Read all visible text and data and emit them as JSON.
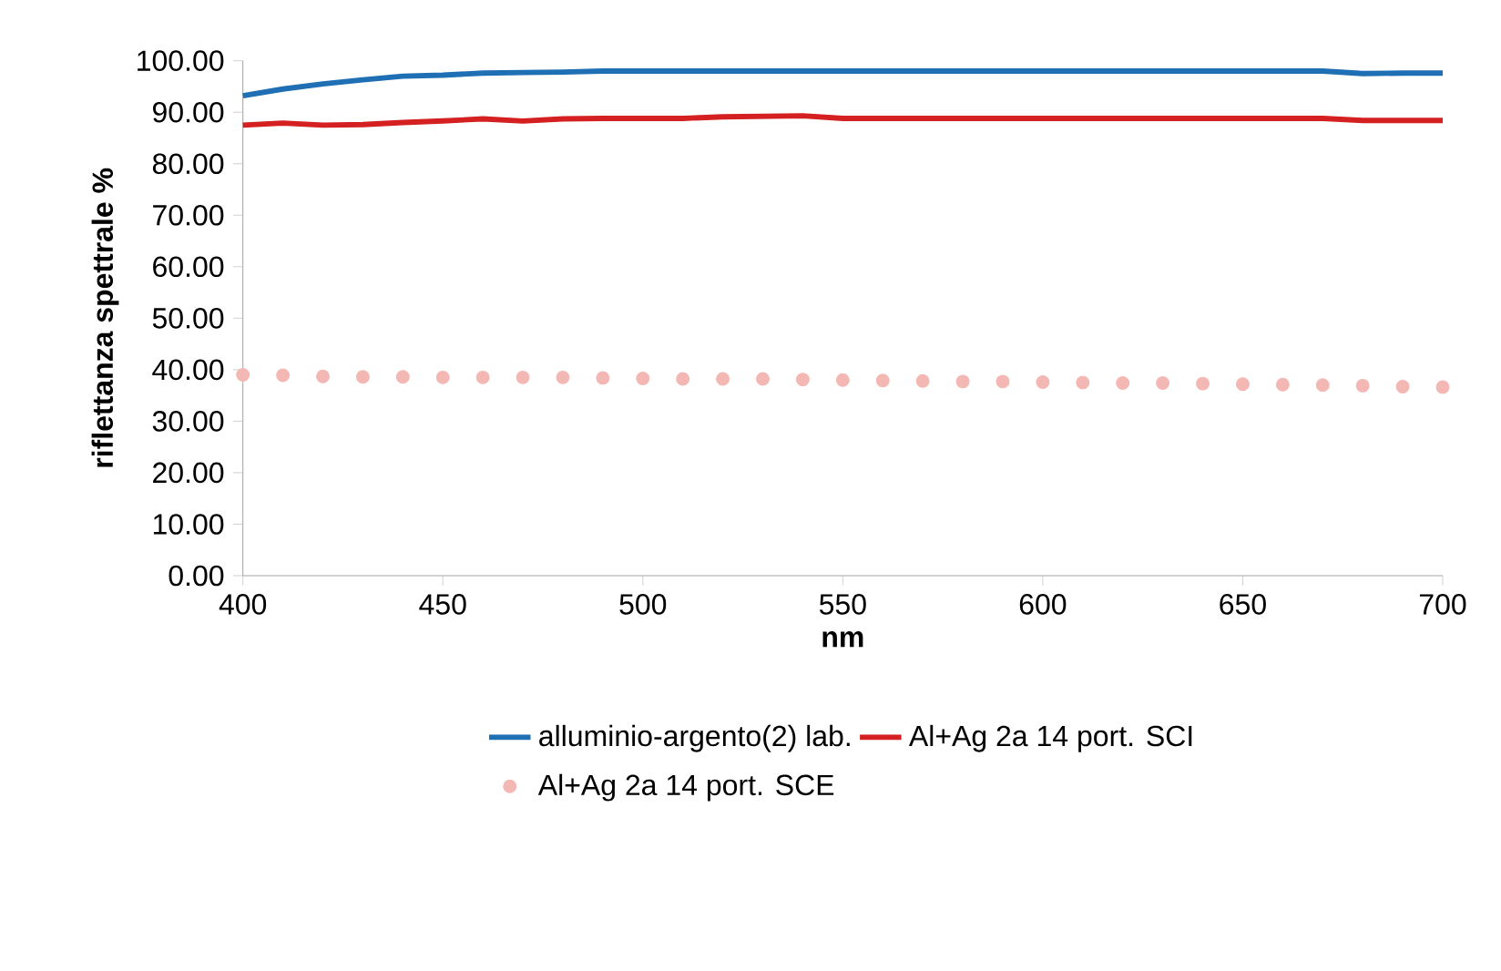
{
  "chart_data": {
    "type": "line",
    "xlabel": "nm",
    "ylabel": "riflettanza spettrale %",
    "x": [
      400,
      410,
      420,
      430,
      440,
      450,
      460,
      470,
      480,
      490,
      500,
      510,
      520,
      530,
      540,
      550,
      560,
      570,
      580,
      590,
      600,
      610,
      620,
      630,
      640,
      650,
      660,
      670,
      680,
      690,
      700
    ],
    "series": [
      {
        "name": "alluminio-argento(2)  lab.",
        "color": "#1f6fb4",
        "values": [
          93.2,
          94.5,
          95.5,
          96.3,
          97.0,
          97.2,
          97.6,
          97.7,
          97.8,
          98.0,
          98.0,
          98.0,
          98.0,
          98.0,
          98.0,
          98.0,
          98.0,
          98.0,
          98.0,
          98.0,
          98.0,
          98.0,
          98.0,
          98.0,
          98.0,
          98.0,
          98.0,
          98.0,
          97.5,
          97.6,
          97.6
        ]
      },
      {
        "name": "Al+Ag 2a 14 port. SCI",
        "color": "#d42020",
        "values": [
          87.5,
          87.9,
          87.5,
          87.6,
          88.0,
          88.3,
          88.7,
          88.3,
          88.7,
          88.8,
          88.8,
          88.8,
          89.1,
          89.2,
          89.3,
          88.8,
          88.8,
          88.8,
          88.8,
          88.8,
          88.8,
          88.8,
          88.8,
          88.8,
          88.8,
          88.8,
          88.8,
          88.8,
          88.4,
          88.4,
          88.4
        ]
      },
      {
        "name": "Al+Ag 2a 14 port. SCE",
        "type": "scatter",
        "marker": "circle",
        "color": "#f4b8b4",
        "values": [
          39.0,
          38.9,
          38.7,
          38.6,
          38.6,
          38.5,
          38.5,
          38.5,
          38.5,
          38.4,
          38.3,
          38.2,
          38.2,
          38.2,
          38.1,
          38.0,
          37.9,
          37.8,
          37.7,
          37.7,
          37.6,
          37.5,
          37.4,
          37.4,
          37.3,
          37.2,
          37.1,
          37.0,
          36.9,
          36.7,
          36.6
        ]
      }
    ],
    "xlim": [
      400,
      700
    ],
    "xticks": [
      400,
      450,
      500,
      550,
      600,
      650,
      700
    ],
    "ylim": [
      0,
      100
    ],
    "yticks": [
      {
        "value": 0,
        "label": "0.00"
      },
      {
        "value": 10,
        "label": "10.00"
      },
      {
        "value": 20,
        "label": "20.00"
      },
      {
        "value": 30,
        "label": "30.00"
      },
      {
        "value": 40,
        "label": "40.00"
      },
      {
        "value": 50,
        "label": "50.00"
      },
      {
        "value": 60,
        "label": "60.00"
      },
      {
        "value": 70,
        "label": "70.00"
      },
      {
        "value": 80,
        "label": "80.00"
      },
      {
        "value": 90,
        "label": "90.00"
      },
      {
        "value": 100,
        "label": "100.00"
      }
    ],
    "legend": "bottom",
    "grid": false
  }
}
